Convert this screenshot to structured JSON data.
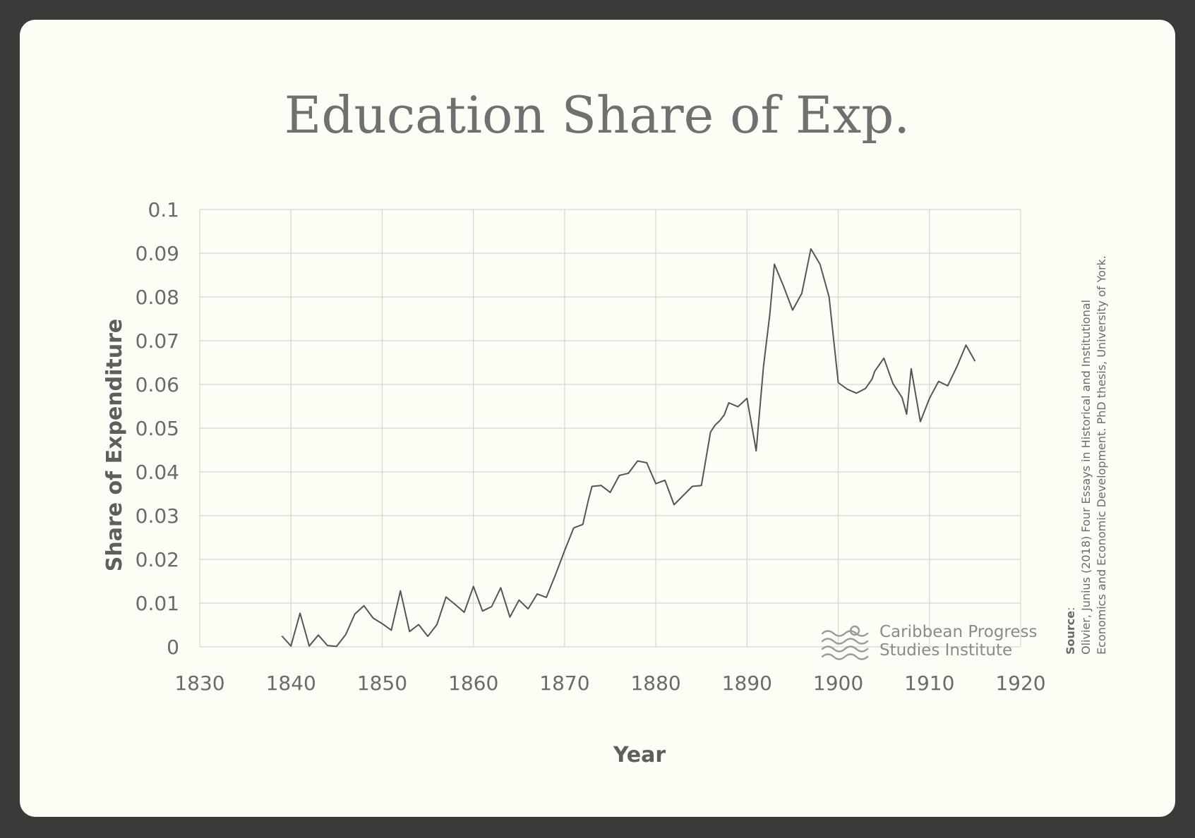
{
  "chart_data": {
    "type": "line",
    "title": "Education Share of Exp.",
    "xlabel": "Year",
    "ylabel": "Share of Expenditure",
    "xlim": [
      1830,
      1920
    ],
    "ylim": [
      0,
      0.1
    ],
    "x_ticks": [
      "1830",
      "1840",
      "1850",
      "1860",
      "1870",
      "1880",
      "1890",
      "1900",
      "1910",
      "1920"
    ],
    "y_ticks": [
      "0",
      "0.01",
      "0.02",
      "0.03",
      "0.04",
      "0.05",
      "0.06",
      "0.07",
      "0.08",
      "0.09",
      "0.1"
    ],
    "grid": true,
    "series": [
      {
        "x": [
          1839,
          1840,
          1841,
          1842,
          1843,
          1844,
          1845,
          1846,
          1847,
          1848,
          1849,
          1850,
          1851,
          1852,
          1853,
          1854,
          1855,
          1856,
          1857,
          1858,
          1859,
          1860,
          1861,
          1862,
          1863,
          1864,
          1865,
          1866,
          1867,
          1868,
          1869,
          1870,
          1871,
          1872,
          1872.6,
          1873,
          1874,
          1875,
          1876,
          1877,
          1878,
          1879,
          1880,
          1881,
          1882,
          1883,
          1884,
          1885,
          1886,
          1886.5,
          1887,
          1887.5,
          1888,
          1889,
          1890,
          1891,
          1891.8,
          1892.5,
          1893,
          1894,
          1895,
          1896,
          1897,
          1898,
          1899,
          1900,
          1901,
          1902,
          1903,
          1903.7,
          1904,
          1905,
          1906,
          1907,
          1907.5,
          1908,
          1909,
          1910,
          1911,
          1912,
          1913,
          1914,
          1915
        ],
        "values": [
          0.0025,
          0.0002,
          0.0077,
          0.0002,
          0.0027,
          0.0003,
          0.0001,
          0.0028,
          0.0075,
          0.0094,
          0.0066,
          0.0053,
          0.0038,
          0.0128,
          0.0035,
          0.0051,
          0.0024,
          0.0051,
          0.0114,
          0.0097,
          0.0079,
          0.0138,
          0.0082,
          0.0092,
          0.0135,
          0.0068,
          0.0107,
          0.0087,
          0.0121,
          0.0113,
          0.0165,
          0.022,
          0.0272,
          0.028,
          0.0335,
          0.0367,
          0.0369,
          0.0353,
          0.0392,
          0.0397,
          0.0425,
          0.0421,
          0.0373,
          0.0381,
          0.0325,
          0.0346,
          0.0367,
          0.0369,
          0.0491,
          0.0507,
          0.0517,
          0.053,
          0.0558,
          0.0549,
          0.0568,
          0.0448,
          0.064,
          0.076,
          0.0875,
          0.0825,
          0.077,
          0.0808,
          0.091,
          0.0875,
          0.08,
          0.0604,
          0.0589,
          0.058,
          0.0591,
          0.0612,
          0.063,
          0.066,
          0.0602,
          0.057,
          0.0532,
          0.0636,
          0.0515,
          0.0568,
          0.0607,
          0.0597,
          0.064,
          0.069,
          0.0653
        ]
      }
    ]
  },
  "source": {
    "label": "Source",
    "line1": "Olivier, Junius (2018) Four Essays in Historical and Institutional",
    "line2": "Economics and Economic Development. PhD thesis, University of York."
  },
  "logo": {
    "line1": "Caribbean Progress",
    "line2": "Studies Institute"
  },
  "colors": {
    "frame": "#3a3a39",
    "card": "#fdfdf6",
    "line": "#555555",
    "grid": "#d6d6d2"
  }
}
